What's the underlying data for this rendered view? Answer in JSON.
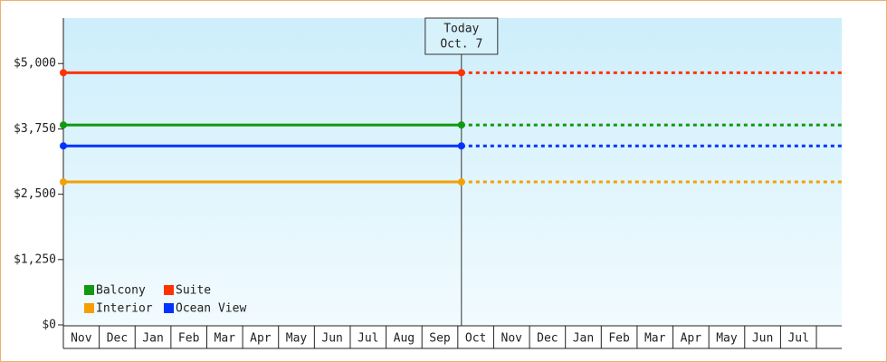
{
  "chart_data": {
    "type": "line",
    "categories": [
      "Nov",
      "Dec",
      "Jan",
      "Feb",
      "Mar",
      "Apr",
      "May",
      "Jun",
      "Jul",
      "Aug",
      "Sep",
      "Oct",
      "Nov",
      "Dec",
      "Jan",
      "Feb",
      "Mar",
      "Apr",
      "May",
      "Jun",
      "Jul"
    ],
    "series": [
      {
        "name": "Balcony",
        "color": "#119911",
        "value": 3825
      },
      {
        "name": "Suite",
        "color": "#ff3300",
        "value": 4825
      },
      {
        "name": "Interior",
        "color": "#f5a000",
        "value": 2735
      },
      {
        "name": "Ocean View",
        "color": "#0033ff",
        "value": 3425
      }
    ],
    "today": {
      "title": "Today",
      "date": "Oct. 7",
      "category": "Oct"
    },
    "ylim": [
      0,
      5870
    ],
    "yticks": [
      {
        "value": 0,
        "label": "$0"
      },
      {
        "value": 1250,
        "label": "$1,250"
      },
      {
        "value": 2500,
        "label": "$2,500"
      },
      {
        "value": 3750,
        "label": "$3,750"
      },
      {
        "value": 5000,
        "label": "$5,000"
      }
    ]
  }
}
